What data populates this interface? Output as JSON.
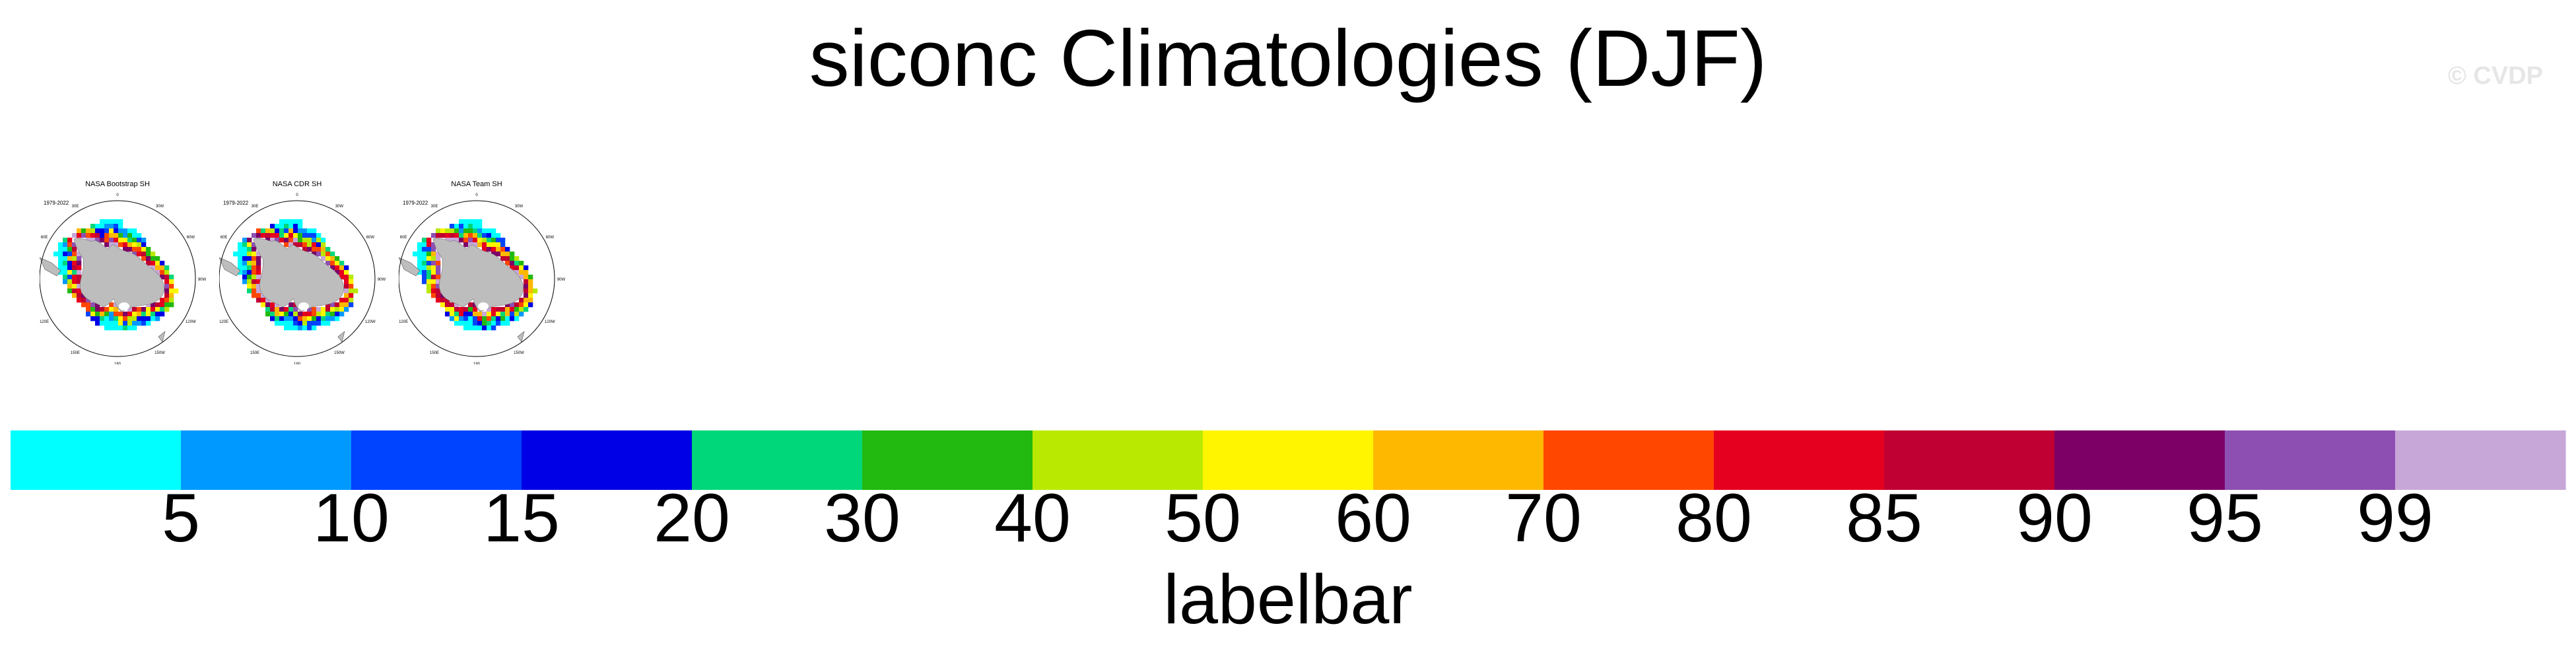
{
  "title": "siconc Climatologies (DJF)",
  "watermark": "© CVDP",
  "panels": [
    {
      "title": "NASA Bootstrap SH",
      "period": "1979-2022",
      "lon_labels": [
        "0",
        "30E",
        "60E",
        "90E",
        "120E",
        "150E",
        "180",
        "150W",
        "120W",
        "90W",
        "60W",
        "30W"
      ]
    },
    {
      "title": "NASA CDR SH",
      "period": "1979-2022",
      "lon_labels": [
        "0",
        "30E",
        "60E",
        "90E",
        "120E",
        "150E",
        "180",
        "150W",
        "120W",
        "90W",
        "60W",
        "30W"
      ]
    },
    {
      "title": "NASA Team SH",
      "period": "1979-2022",
      "lon_labels": [
        "0",
        "30E",
        "60E",
        "90E",
        "120E",
        "150E",
        "180",
        "150W",
        "120W",
        "90W",
        "60W",
        "30W"
      ]
    }
  ],
  "chart_data": {
    "type": "heatmap",
    "title": "siconc Climatologies (DJF)",
    "labelbar": {
      "title": "labelbar",
      "tick_labels": [
        "5",
        "10",
        "15",
        "20",
        "30",
        "40",
        "50",
        "60",
        "70",
        "80",
        "85",
        "90",
        "95",
        "99"
      ],
      "colors": [
        "#00ffff",
        "#0099ff",
        "#0044ff",
        "#0000e6",
        "#00d77a",
        "#22b910",
        "#b9e900",
        "#fff500",
        "#ffb800",
        "#ff4700",
        "#e6001f",
        "#c00032",
        "#7d0066",
        "#8e4fb3",
        "#c7a7d8"
      ]
    },
    "land_color": "#bdbdbd"
  }
}
